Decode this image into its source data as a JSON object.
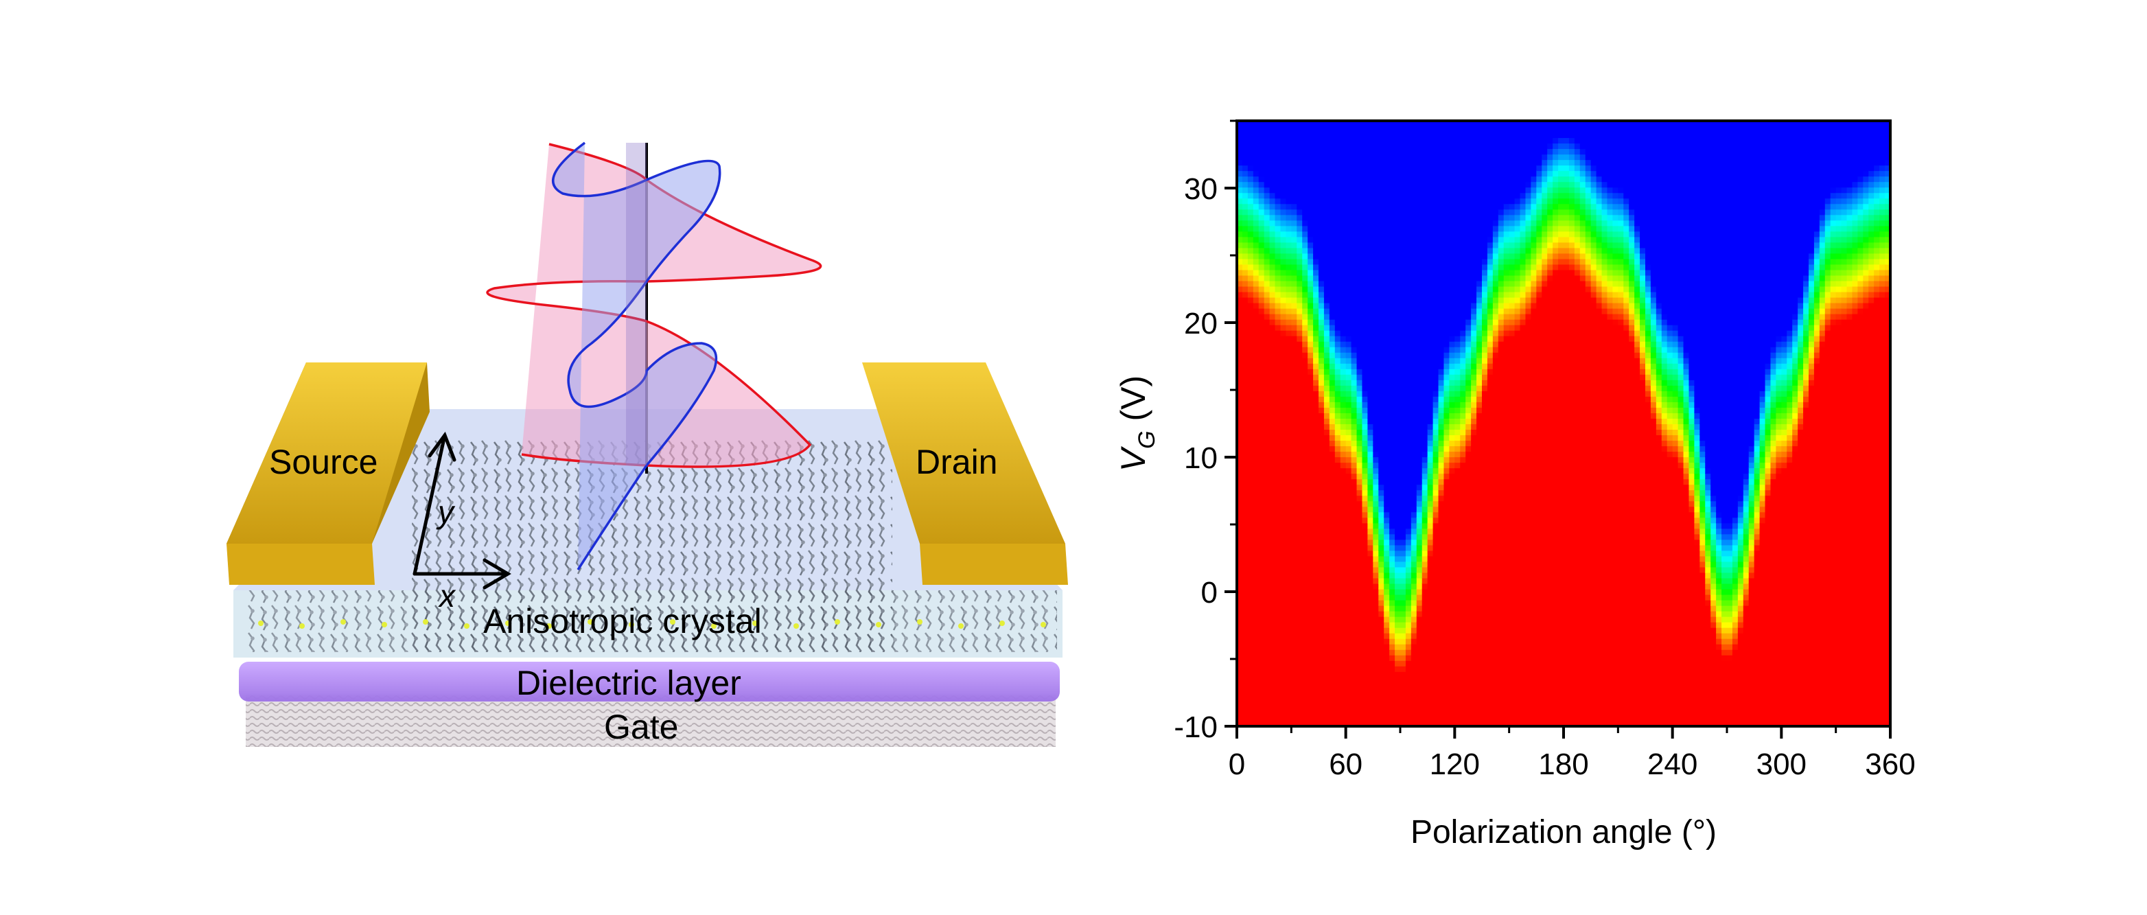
{
  "schematic": {
    "source_label": "Source",
    "drain_label": "Drain",
    "crystal_label": "Anisotropic crystal",
    "dielectric_label": "Dielectric layer",
    "gate_label": "Gate",
    "axis_x_label": "x",
    "axis_y_label": "y",
    "colors": {
      "electrode": "#e3b21c",
      "dielectric": "#b58ef0",
      "gate": "#d8d2d6",
      "crystal_slab": "#c9d9f2",
      "wave_red": "#e8121e",
      "wave_blue": "#1d2fd6"
    }
  },
  "chart_data": {
    "type": "heatmap",
    "xlabel": "Polarization angle (°)",
    "ylabel_main": "V",
    "ylabel_sub": "G",
    "ylabel_unit": " (V)",
    "xlim": [
      0,
      360
    ],
    "ylim": [
      -10,
      35
    ],
    "xticks": [
      0,
      60,
      120,
      180,
      240,
      300,
      360
    ],
    "yticks": [
      -10,
      0,
      10,
      20,
      30
    ],
    "colormap": [
      "#0000ff",
      "#00ffff",
      "#00ff00",
      "#ffff00",
      "#ff0000"
    ],
    "threshold_curve": {
      "x": [
        0,
        30,
        60,
        90,
        120,
        150,
        180,
        210,
        240,
        270,
        300,
        330,
        360
      ],
      "y": [
        22,
        19,
        9,
        -6,
        9,
        19,
        24,
        20,
        10,
        -5,
        9,
        20,
        22
      ]
    },
    "transition_width_V": 10
  }
}
